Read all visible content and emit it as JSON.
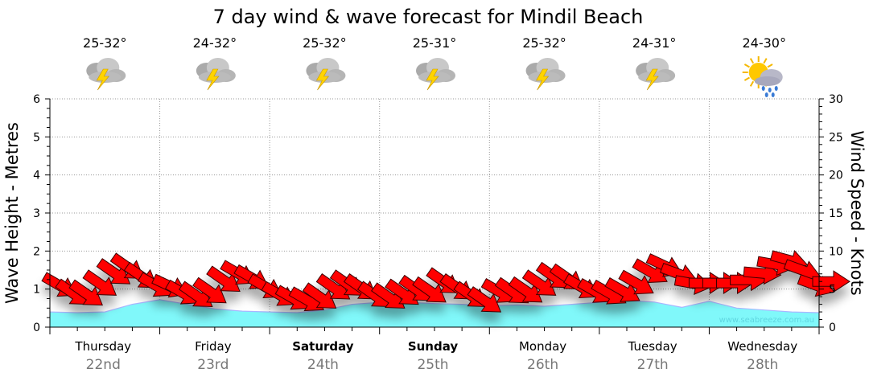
{
  "chart_data": {
    "type": "area",
    "title": "7 day wind & wave forecast for Mindil Beach",
    "ylabel": "Wave Height - Metres",
    "y2label": "Wind Speed - Knots",
    "ylim": [
      0,
      6
    ],
    "y2lim": [
      0,
      30
    ],
    "yticks": [
      "0",
      "1",
      "2",
      "3",
      "4",
      "5",
      "6"
    ],
    "y2ticks": [
      "0",
      "5",
      "10",
      "15",
      "20",
      "25",
      "30"
    ],
    "grid": true,
    "watermark": "www.seabreeze.com.au",
    "days": [
      {
        "name": "Thursday",
        "date": "22nd",
        "temp": "25-32°",
        "icon": "thunderstorm-icon",
        "weekend": false
      },
      {
        "name": "Friday",
        "date": "23rd",
        "temp": "24-32°",
        "icon": "thunderstorm-icon",
        "weekend": false
      },
      {
        "name": "Saturday",
        "date": "24th",
        "temp": "25-32°",
        "icon": "thunderstorm-icon",
        "weekend": true
      },
      {
        "name": "Sunday",
        "date": "25th",
        "temp": "25-31°",
        "icon": "thunderstorm-icon",
        "weekend": true
      },
      {
        "name": "Monday",
        "date": "26th",
        "temp": "25-32°",
        "icon": "thunderstorm-icon",
        "weekend": false
      },
      {
        "name": "Tuesday",
        "date": "27th",
        "temp": "24-31°",
        "icon": "thunderstorm-icon",
        "weekend": false
      },
      {
        "name": "Wednesday",
        "date": "28th",
        "temp": "24-30°",
        "icon": "sun-cloud-rain-icon",
        "weekend": false
      }
    ],
    "wave_series": {
      "name": "Wave Height (m)",
      "interval_hours": 6,
      "values": [
        0.4,
        0.38,
        0.4,
        0.6,
        0.72,
        0.6,
        0.48,
        0.42,
        0.4,
        0.38,
        0.45,
        0.6,
        0.65,
        0.65,
        0.62,
        0.6,
        0.56,
        0.58,
        0.55,
        0.6,
        0.65,
        0.7,
        0.66,
        0.52,
        0.68,
        0.5,
        0.45,
        0.4,
        0.38
      ]
    },
    "wind_series": {
      "name": "Wind Speed (knots)",
      "interval_hours": 3,
      "speeds": [
        6.2,
        5.3,
        5.2,
        6.5,
        8,
        8.7,
        7.5,
        6.2,
        6,
        5.2,
        5,
        5.5,
        7,
        7.8,
        7.2,
        6,
        5,
        4.5,
        4.3,
        4.8,
        6,
        6.5,
        6,
        5,
        4.8,
        5.3,
        5.8,
        5.6,
        6.8,
        6,
        5,
        4.3,
        5.4,
        5.5,
        5.6,
        6.5,
        7.5,
        7.3,
        6,
        5.4,
        5.2,
        5.5,
        6.5,
        8,
        8.7,
        7.5,
        6,
        5.8,
        5.8,
        5.8,
        6.2,
        7.2,
        8.5,
        9.2,
        8,
        6,
        6
      ],
      "arrow_angles_deg": [
        30,
        35,
        35,
        35,
        35,
        35,
        35,
        30,
        25,
        30,
        35,
        35,
        35,
        30,
        30,
        30,
        30,
        30,
        30,
        35,
        35,
        35,
        35,
        35,
        35,
        35,
        35,
        35,
        35,
        35,
        35,
        35,
        30,
        35,
        35,
        35,
        35,
        35,
        30,
        30,
        30,
        30,
        30,
        30,
        25,
        20,
        10,
        0,
        0,
        0,
        0,
        5,
        10,
        15,
        20,
        20,
        0
      ]
    },
    "colors": {
      "wave": "#80f8fa",
      "wave_edge": "#a9b6ff",
      "arrow": "#ff0000",
      "arrow_edge": "#3a0000"
    }
  }
}
